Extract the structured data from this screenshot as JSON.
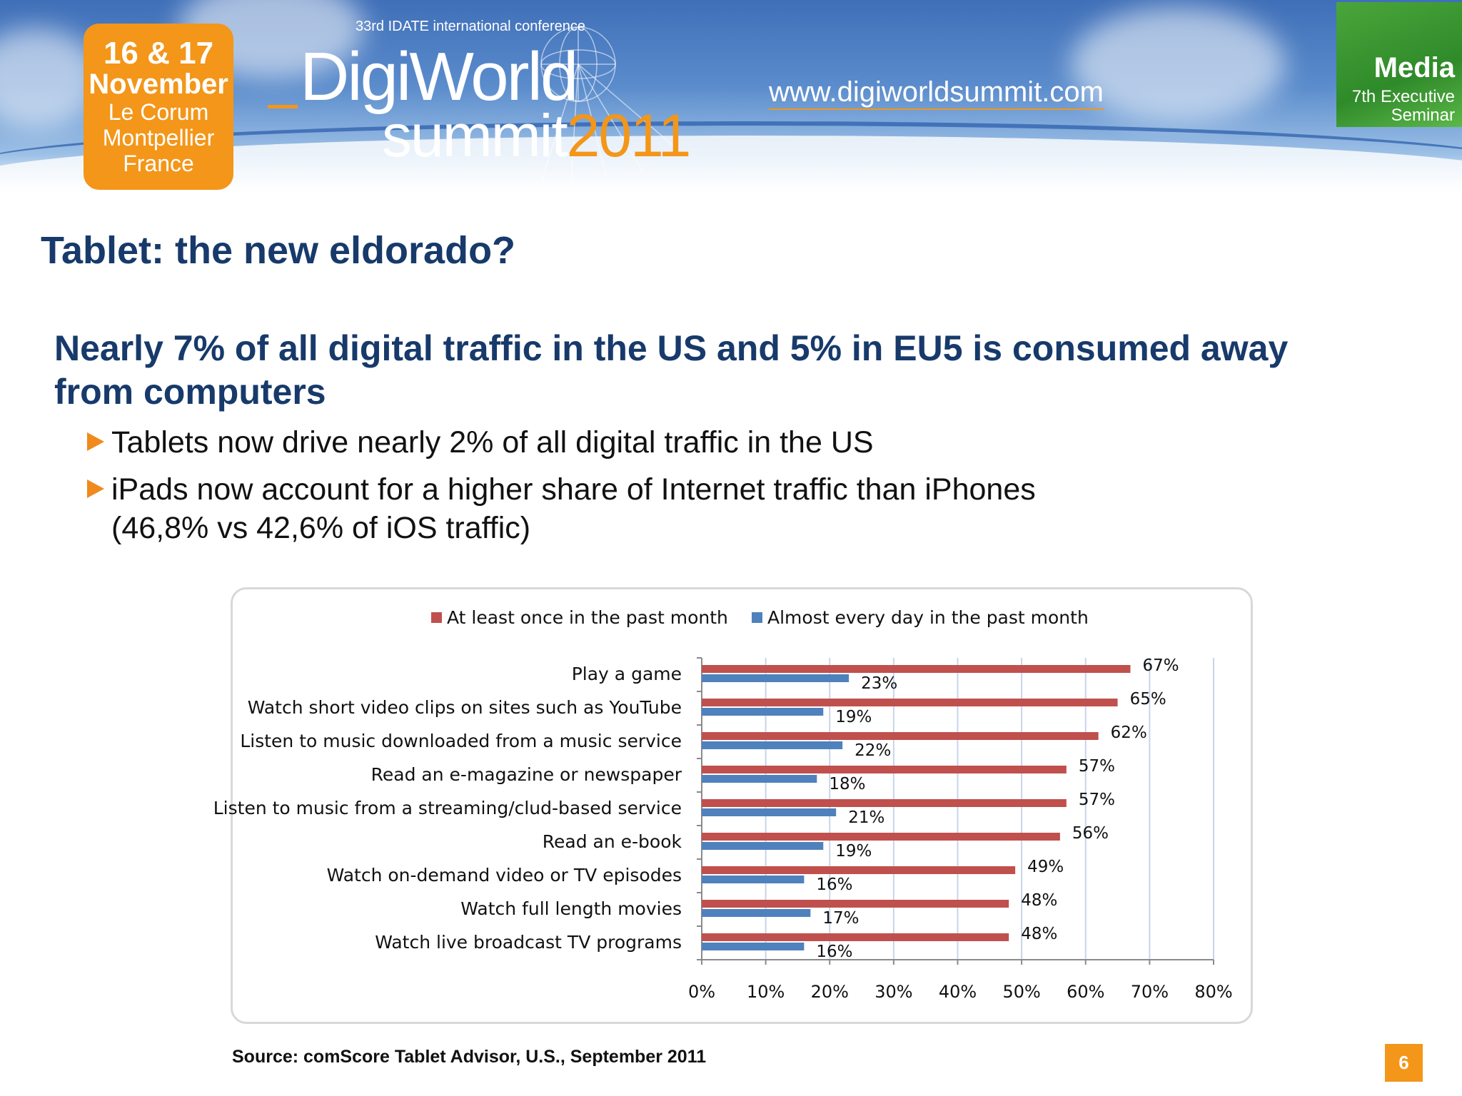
{
  "banner": {
    "date_line1": "16 & 17",
    "date_line2": "November",
    "venue_line1": "Le Corum",
    "venue_line2": "Montpellier",
    "venue_line3": "France",
    "conference_label": "33rd IDATE international conference",
    "logo_line1": "DigiWorld",
    "logo_line2": "summit",
    "logo_year": "2011",
    "url": "www.digiworldsummit.com",
    "media_title": "Media",
    "media_sub1": "7th Executive",
    "media_sub2": "Seminar"
  },
  "slide": {
    "title": "Tablet: the new eldorado?",
    "headline": "Nearly 7% of all digital traffic in the US and 5% in EU5 is consumed away from computers",
    "bullet1": "Tablets now drive nearly 2% of all digital traffic in the US",
    "bullet2_line1": "iPads now account for a higher share of Internet traffic than iPhones",
    "bullet2_line2": "(46,8% vs 42,6% of iOS traffic)",
    "source": "Source: comScore Tablet Advisor, U.S., September 2011",
    "page_number": "6"
  },
  "chart_data": {
    "type": "bar",
    "orientation": "horizontal",
    "categories": [
      "Play a game",
      "Watch short video clips on sites such as YouTube",
      "Listen to music downloaded from a music service",
      "Read an e-magazine or newspaper",
      "Listen to music from a streaming/clud-based service",
      "Read an e-book",
      "Watch on-demand video or TV episodes",
      "Watch full length movies",
      "Watch live broadcast TV programs"
    ],
    "series": [
      {
        "name": "At least once in the past month",
        "color": "#c0504d",
        "values": [
          67,
          65,
          62,
          57,
          57,
          56,
          49,
          48,
          48
        ]
      },
      {
        "name": "Almost every day in the past month",
        "color": "#4f81bd",
        "values": [
          23,
          19,
          22,
          18,
          21,
          19,
          16,
          17,
          16
        ]
      }
    ],
    "x_ticks": [
      "0%",
      "10%",
      "20%",
      "30%",
      "40%",
      "50%",
      "60%",
      "70%",
      "80%"
    ],
    "xlim": [
      0,
      80
    ],
    "value_suffix": "%",
    "legend_position": "top",
    "grid": "vertical"
  }
}
